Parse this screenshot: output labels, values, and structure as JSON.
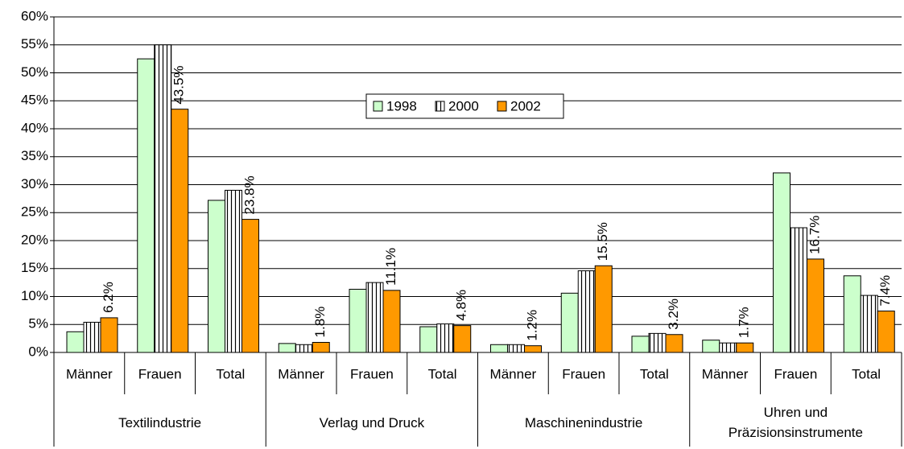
{
  "chart_data": {
    "type": "bar",
    "categories": [
      "Männer",
      "Frauen",
      "Total",
      "Männer",
      "Frauen",
      "Total",
      "Männer",
      "Frauen",
      "Total",
      "Männer",
      "Frauen",
      "Total"
    ],
    "groups": [
      "Textilindustrie",
      "Verlag und Druck",
      "Maschinenindustrie",
      "Uhren und Präzisionsinstrumente"
    ],
    "series": [
      {
        "name": "1998",
        "color": "#ccffcc",
        "values": [
          3.7,
          52.5,
          27.2,
          1.6,
          11.3,
          4.6,
          1.4,
          10.6,
          2.9,
          2.2,
          32.1,
          13.7
        ]
      },
      {
        "name": "2000",
        "color": "#ffffff",
        "pattern": "vertical-stripes",
        "values": [
          5.4,
          55,
          29,
          1.4,
          12.5,
          5.1,
          1.4,
          14.6,
          3.4,
          1.7,
          22.3,
          10.2
        ]
      },
      {
        "name": "2002",
        "color": "#ff9900",
        "values": [
          6.2,
          43.5,
          23.8,
          1.8,
          11.1,
          4.8,
          1.2,
          15.5,
          3.2,
          1.7,
          16.7,
          7.4
        ],
        "value_labels": [
          "6.2%",
          "43.5%",
          "23.8%",
          "1.8%",
          "11.1%",
          "4.8%",
          "1.2%",
          "15.5%",
          "3.2%",
          "1.7%",
          "16.7%",
          "7.4%"
        ]
      }
    ],
    "ylim": [
      0,
      60
    ],
    "yticks": [
      {
        "value": 0,
        "label": "0%"
      },
      {
        "value": 5,
        "label": "5%"
      },
      {
        "value": 10,
        "label": "10%"
      },
      {
        "value": 15,
        "label": "15%"
      },
      {
        "value": 20,
        "label": "20%"
      },
      {
        "value": 25,
        "label": "25%"
      },
      {
        "value": 30,
        "label": "30%"
      },
      {
        "value": 35,
        "label": "35%"
      },
      {
        "value": 40,
        "label": "40%"
      },
      {
        "value": 45,
        "label": "45%"
      },
      {
        "value": 50,
        "label": "50%"
      },
      {
        "value": 55,
        "label": "55%"
      },
      {
        "value": 60,
        "label": "60%"
      }
    ],
    "grid": true,
    "legend": "top-center"
  }
}
